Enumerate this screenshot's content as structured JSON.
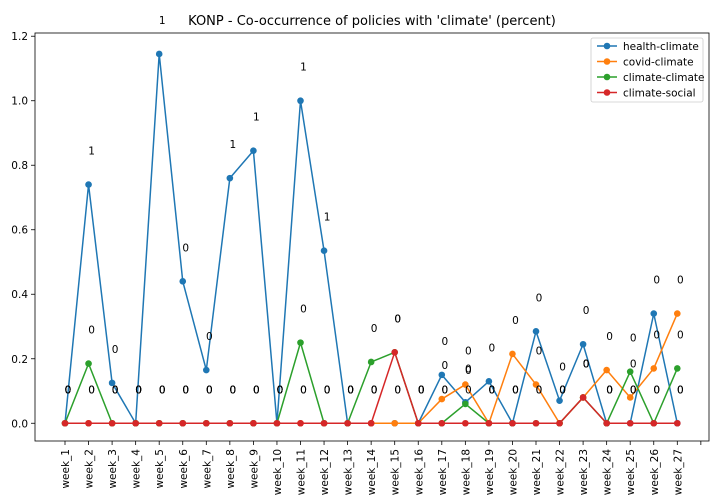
{
  "chart_data": {
    "type": "line",
    "title": "KONP - Co-occurrence of policies with 'climate' (percent)",
    "xlabel": "",
    "ylabel": "",
    "categories": [
      "week_1",
      "week_2",
      "week_3",
      "week_4",
      "week_5",
      "week_6",
      "week_7",
      "week_8",
      "week_9",
      "week_10",
      "week_11",
      "week_12",
      "week_13",
      "week_14",
      "week_15",
      "week_16",
      "week_17",
      "week_18",
      "week_19",
      "week_20",
      "week_21",
      "week_22",
      "week_23",
      "week_24",
      "week_25",
      "week_26",
      "week_27"
    ],
    "ylim": [
      -0.055,
      1.21
    ],
    "yticks": [
      0.0,
      0.2,
      0.4,
      0.6,
      0.8,
      1.0,
      1.2
    ],
    "ytick_labels": [
      "0.0",
      "0.2",
      "0.4",
      "0.6",
      "0.8",
      "1.0",
      "1.2"
    ],
    "grid": false,
    "legend_position": "top-right",
    "series": [
      {
        "name": "health-climate",
        "color": "#1f77b4",
        "values": [
          0,
          0.74,
          0.125,
          0,
          1.145,
          0.44,
          0.165,
          0.76,
          0.845,
          0,
          1.0,
          0.535,
          0,
          0,
          0,
          0,
          0.15,
          0.065,
          0.13,
          0,
          0.285,
          0.07,
          0.245,
          0,
          0,
          0.34,
          0
        ],
        "labels": [
          "0",
          "1",
          "0",
          "0",
          "1",
          "0",
          "0",
          "1",
          "1",
          "0",
          "1",
          "1",
          "0",
          "0",
          "0",
          "0",
          "0",
          "0",
          "0",
          "0",
          "0",
          "0",
          "0",
          "0",
          "0",
          "0",
          "0"
        ]
      },
      {
        "name": "covid-climate",
        "color": "#ff7f0e",
        "values": [
          0,
          0,
          0,
          0,
          0,
          0,
          0,
          0,
          0,
          0,
          0,
          0,
          0,
          0,
          0,
          0,
          0.075,
          0.12,
          0,
          0.215,
          0.12,
          0,
          0.08,
          0.165,
          0.08,
          0.17,
          0.34
        ],
        "labels": [
          "0",
          "0",
          "0",
          "0",
          "0",
          "0",
          "0",
          "0",
          "0",
          "0",
          "0",
          "0",
          "0",
          "0",
          "0",
          "0",
          "0",
          "0",
          "0",
          "0",
          "0",
          "0",
          "0",
          "0",
          "0",
          "0",
          "0"
        ]
      },
      {
        "name": "climate-climate",
        "color": "#2ca02c",
        "values": [
          0,
          0.185,
          0,
          0,
          0,
          0,
          0,
          0,
          0,
          0,
          0.25,
          0,
          0,
          0.19,
          0.22,
          0,
          0,
          0.06,
          0,
          0,
          0,
          0,
          0.08,
          0,
          0.16,
          0,
          0.17
        ],
        "labels": [
          "0",
          "0",
          "0",
          "0",
          "0",
          "0",
          "0",
          "0",
          "0",
          "0",
          "0",
          "0",
          "0",
          "0",
          "0",
          "0",
          "0",
          "0",
          "0",
          "0",
          "0",
          "0",
          "0",
          "0",
          "0",
          "0",
          "0"
        ]
      },
      {
        "name": "climate-social",
        "color": "#d62728",
        "values": [
          0,
          0,
          0,
          0,
          0,
          0,
          0,
          0,
          0,
          0,
          0,
          0,
          0,
          0,
          0.22,
          0,
          0,
          0,
          0,
          0,
          0,
          0,
          0.08,
          0,
          0,
          0,
          0
        ],
        "labels": [
          "0",
          "0",
          "0",
          "0",
          "0",
          "0",
          "0",
          "0",
          "0",
          "0",
          "0",
          "0",
          "0",
          "0",
          "0",
          "0",
          "0",
          "0",
          "0",
          "0",
          "0",
          "0",
          "0",
          "0",
          "0",
          "0",
          "0"
        ]
      }
    ]
  }
}
